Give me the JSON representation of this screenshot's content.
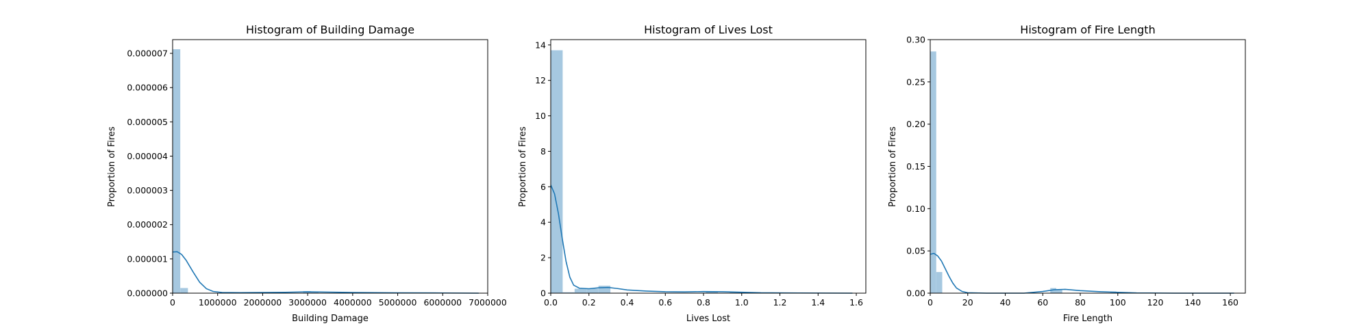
{
  "figure": {
    "bar_color": "#a6c8e0",
    "kde_color": "#1f77b4",
    "axes_color": "#000000"
  },
  "chart_data": [
    {
      "type": "bar",
      "title": "Histogram of Building Damage",
      "xlabel": "Building Damage",
      "ylabel": "Proportion of Fires",
      "xlim": [
        0,
        7000000
      ],
      "ylim": [
        0,
        7.4e-06
      ],
      "xticks": [
        0,
        1000000,
        2000000,
        3000000,
        4000000,
        5000000,
        6000000,
        7000000
      ],
      "xtick_labels": [
        "0",
        "1000000",
        "2000000",
        "3000000",
        "4000000",
        "5000000",
        "6000000",
        "7000000"
      ],
      "yticks": [
        0,
        1e-06,
        2e-06,
        3e-06,
        4e-06,
        5e-06,
        6e-06,
        7e-06
      ],
      "ytick_labels": [
        "0.000000",
        "0.000001",
        "0.000002",
        "0.000003",
        "0.000004",
        "0.000005",
        "0.000006",
        "0.000007"
      ],
      "bin_edges": [
        0,
        170000,
        340000
      ],
      "bin_heights": [
        7.12e-06,
        1.5e-07
      ],
      "bins_extra": [
        {
          "x0": 1700000,
          "x1": 1870000,
          "h": 2e-08
        },
        {
          "x0": 2900000,
          "x1": 3070000,
          "h": 6e-08
        },
        {
          "x0": 3070000,
          "x1": 3240000,
          "h": 4e-08
        }
      ],
      "kde": [
        [
          0,
          1.2e-06
        ],
        [
          100000,
          1.21e-06
        ],
        [
          200000,
          1.13e-06
        ],
        [
          300000,
          9.6e-07
        ],
        [
          450000,
          6.3e-07
        ],
        [
          600000,
          3.2e-07
        ],
        [
          750000,
          1.3e-07
        ],
        [
          900000,
          5e-08
        ],
        [
          1100000,
          2e-08
        ],
        [
          1500000,
          1.5e-08
        ],
        [
          2000000,
          2e-08
        ],
        [
          2500000,
          2.5e-08
        ],
        [
          3000000,
          4e-08
        ],
        [
          3500000,
          3e-08
        ],
        [
          4000000,
          2e-08
        ],
        [
          5000000,
          1e-08
        ],
        [
          6000000,
          5e-09
        ],
        [
          6800000,
          0.0
        ]
      ]
    },
    {
      "type": "bar",
      "title": "Histogram of Lives Lost",
      "xlabel": "Lives Lost",
      "ylabel": "Proportion of Fires",
      "xlim": [
        0,
        1.65
      ],
      "ylim": [
        0,
        14.3
      ],
      "xticks": [
        0,
        0.2,
        0.4,
        0.6,
        0.8,
        1.0,
        1.2,
        1.4,
        1.6
      ],
      "xtick_labels": [
        "0.0",
        "0.2",
        "0.4",
        "0.6",
        "0.8",
        "1.0",
        "1.2",
        "1.4",
        "1.6"
      ],
      "yticks": [
        0,
        2,
        4,
        6,
        8,
        10,
        12,
        14
      ],
      "ytick_labels": [
        "0",
        "2",
        "4",
        "6",
        "8",
        "10",
        "12",
        "14"
      ],
      "bin_edges": [
        0,
        0.0625,
        0.125,
        0.1875,
        0.25,
        0.3125
      ],
      "bin_heights": [
        13.7,
        0.05,
        0.25,
        0.25,
        0.42
      ],
      "bins_extra": [
        {
          "x0": 0.8125,
          "x1": 0.875,
          "h": 0.06
        },
        {
          "x0": 0.9375,
          "x1": 1.0,
          "h": 0.04
        }
      ],
      "kde": [
        [
          0,
          6.1
        ],
        [
          0.02,
          5.6
        ],
        [
          0.04,
          4.5
        ],
        [
          0.06,
          3.1
        ],
        [
          0.08,
          1.8
        ],
        [
          0.1,
          0.9
        ],
        [
          0.12,
          0.45
        ],
        [
          0.15,
          0.28
        ],
        [
          0.2,
          0.25
        ],
        [
          0.25,
          0.3
        ],
        [
          0.3,
          0.32
        ],
        [
          0.35,
          0.26
        ],
        [
          0.4,
          0.18
        ],
        [
          0.5,
          0.12
        ],
        [
          0.6,
          0.08
        ],
        [
          0.7,
          0.07
        ],
        [
          0.8,
          0.09
        ],
        [
          0.9,
          0.08
        ],
        [
          1.0,
          0.05
        ],
        [
          1.1,
          0.02
        ],
        [
          1.3,
          0.01
        ],
        [
          1.58,
          0.0
        ]
      ]
    },
    {
      "type": "bar",
      "title": "Histogram of Fire Length",
      "xlabel": "Fire Length",
      "ylabel": "Proportion of Fires",
      "xlim": [
        0,
        168
      ],
      "ylim": [
        0,
        0.3
      ],
      "xticks": [
        0,
        20,
        40,
        60,
        80,
        100,
        120,
        140,
        160
      ],
      "xtick_labels": [
        "0",
        "20",
        "40",
        "60",
        "80",
        "100",
        "120",
        "140",
        "160"
      ],
      "yticks": [
        0,
        0.05,
        0.1,
        0.15,
        0.2,
        0.25,
        0.3
      ],
      "ytick_labels": [
        "0.00",
        "0.05",
        "0.10",
        "0.15",
        "0.20",
        "0.25",
        "0.30"
      ],
      "bin_edges": [
        0,
        3.2,
        6.4
      ],
      "bin_heights": [
        0.286,
        0.025
      ],
      "bins_extra": [
        {
          "x0": 64,
          "x1": 67.2,
          "h": 0.006
        },
        {
          "x0": 67.2,
          "x1": 70.4,
          "h": 0.004
        },
        {
          "x0": 96,
          "x1": 99.2,
          "h": 0.002
        }
      ],
      "kde": [
        [
          0,
          0.046
        ],
        [
          2,
          0.047
        ],
        [
          4,
          0.044
        ],
        [
          6,
          0.038
        ],
        [
          8,
          0.029
        ],
        [
          10,
          0.02
        ],
        [
          12,
          0.012
        ],
        [
          14,
          0.006
        ],
        [
          17,
          0.002
        ],
        [
          20,
          0.0005
        ],
        [
          30,
          0.0
        ],
        [
          50,
          0.0
        ],
        [
          60,
          0.002
        ],
        [
          66,
          0.004
        ],
        [
          72,
          0.0045
        ],
        [
          80,
          0.003
        ],
        [
          90,
          0.0018
        ],
        [
          100,
          0.001
        ],
        [
          110,
          0.0003
        ],
        [
          130,
          0.0
        ],
        [
          162,
          0.0
        ]
      ]
    }
  ]
}
